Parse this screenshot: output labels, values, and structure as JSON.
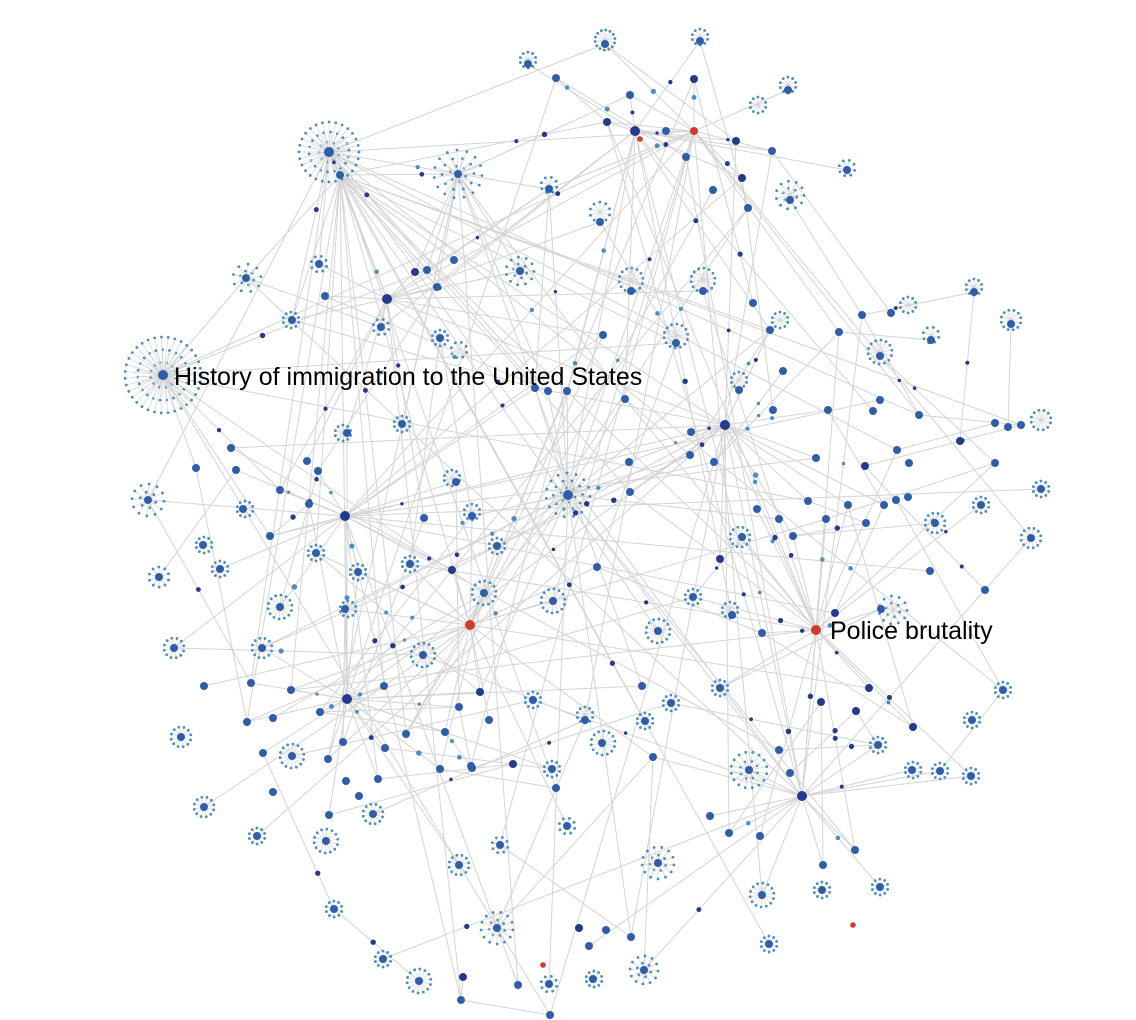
{
  "graph": {
    "labels": [
      {
        "id": "immigration",
        "text": "History of immigration to the United States"
      },
      {
        "id": "police",
        "text": "Police brutality"
      }
    ],
    "colors": {
      "edge": "#d4d4d4",
      "node_large": "#2f5ea8",
      "node_dark": "#243a8c",
      "node_small": "#4a8ec2",
      "node_highlight": "#d43a2c",
      "label": "#000000"
    }
  }
}
